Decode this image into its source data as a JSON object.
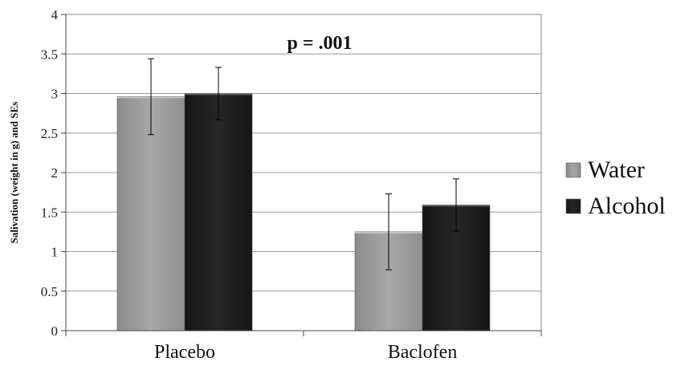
{
  "chart_data": {
    "type": "bar",
    "title": "",
    "xlabel": "",
    "ylabel": "Salivation (weight in g) and SEs",
    "ylim": [
      0,
      4
    ],
    "yticks": [
      "0",
      "0.5",
      "1",
      "1.5",
      "2",
      "2.5",
      "3",
      "3.5",
      "4"
    ],
    "categories": [
      "Placebo",
      "Baclofen"
    ],
    "series": [
      {
        "name": "Water",
        "values": [
          2.96,
          1.25
        ],
        "error": [
          0.48,
          0.48
        ],
        "color": "#9e9e9e"
      },
      {
        "name": "Alcohol",
        "values": [
          3.0,
          1.59
        ],
        "error": [
          0.33,
          0.33
        ],
        "color": "#1c1c1c"
      }
    ],
    "annotation": "p = .001",
    "grid": true,
    "legend_position": "right"
  }
}
